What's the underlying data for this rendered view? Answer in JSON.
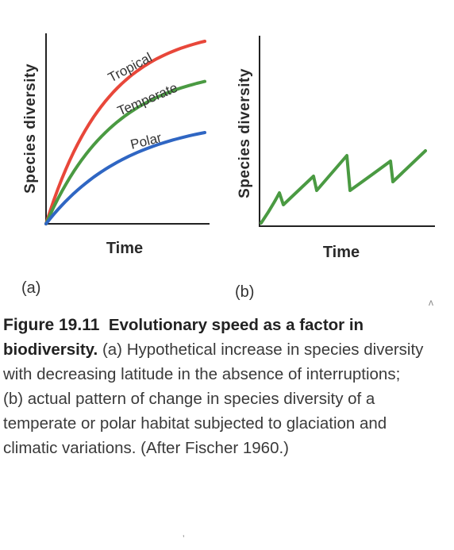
{
  "chart_data": [
    {
      "type": "line",
      "panel_label": "(a)",
      "ylabel": "Species diversity",
      "xlabel": "Time",
      "series": [
        {
          "name": "Tropical",
          "color": "#e8473a",
          "shape": "saturating",
          "level": 1.0
        },
        {
          "name": "Temperate",
          "color": "#4a9a42",
          "shape": "saturating",
          "level": 0.78
        },
        {
          "name": "Polar",
          "color": "#2f66c3",
          "shape": "saturating",
          "level": 0.5
        }
      ]
    },
    {
      "type": "line",
      "panel_label": "(b)",
      "ylabel": "Species diversity",
      "xlabel": "Time",
      "series": [
        {
          "color": "#4a9a42",
          "shape": "sawtooth"
        }
      ]
    }
  ],
  "caption": {
    "figure_number": "Figure 19.11",
    "title": "Evolutionary speed as a factor in",
    "title_cont": "biodiversity.",
    "line2_rest": "(a) Hypothetical increase in species diversity",
    "line3": "with decreasing latitude in the absence of interruptions;",
    "line4": "(b) actual pattern of change in species diversity of a",
    "line5": "temperate or polar habitat subjected to glaciation and",
    "line6": "climatic variations. (After Fischer 1960.)"
  }
}
